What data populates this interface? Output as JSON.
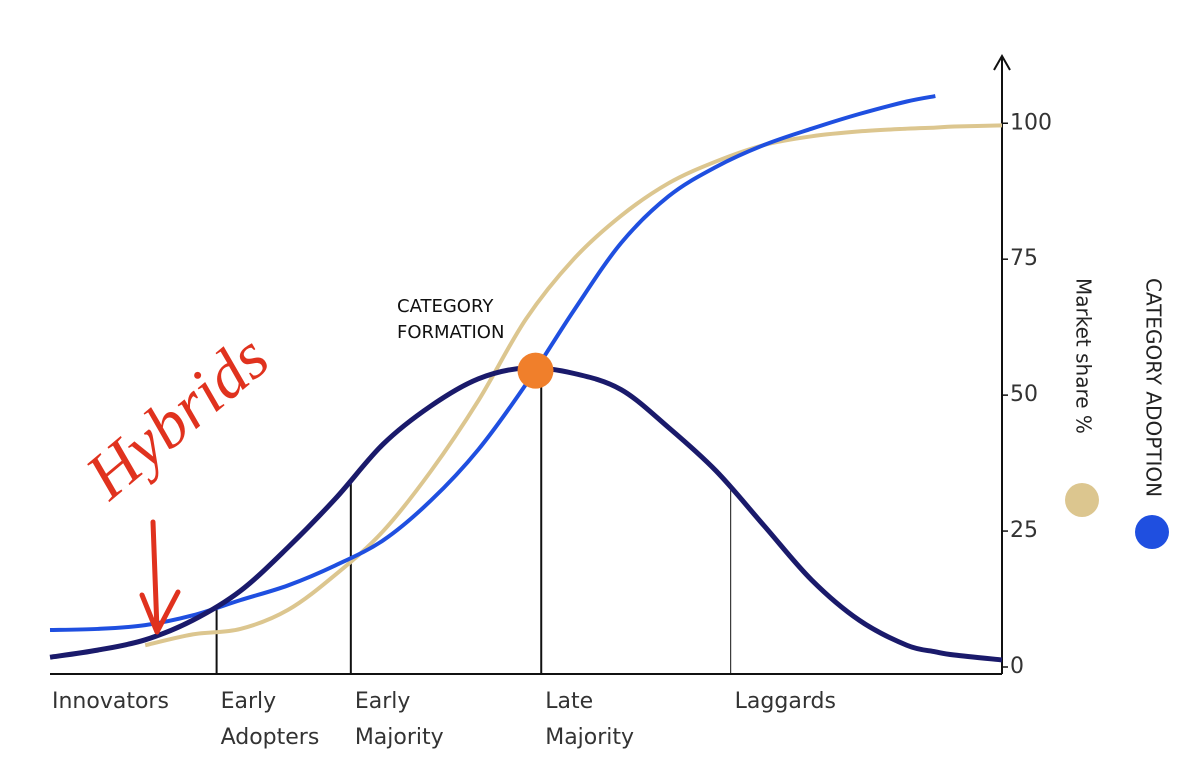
{
  "chart_data": {
    "type": "line",
    "x": [
      0,
      5,
      10,
      15,
      20,
      25,
      30,
      35,
      40,
      45,
      50,
      55,
      60,
      65,
      70,
      75,
      80,
      85,
      90,
      93,
      95,
      100
    ],
    "xlim": [
      0,
      100
    ],
    "ylim": [
      0,
      112
    ],
    "yticks": [
      0,
      25,
      50,
      75,
      100
    ],
    "series": [
      {
        "color": "#1a1a6b",
        "values": [
          1.8,
          3.1,
          5,
          8.6,
          14,
          22,
          31,
          41,
          48,
          53,
          55,
          54,
          51,
          44,
          36,
          26,
          16,
          8.6,
          4,
          2.8,
          2.2,
          1.3
        ]
      },
      {
        "name": "Market share %",
        "color": "#dcc68f",
        "values": [
          null,
          null,
          4,
          6,
          7,
          10.5,
          17,
          25,
          36,
          49,
          64,
          75,
          83,
          89,
          93,
          96,
          97.6,
          98.5,
          99,
          99.2,
          99.4,
          99.6
        ]
      },
      {
        "name": "CATEGORY ADOPTION",
        "color": "#1f4fe0",
        "values": [
          6.8,
          7,
          7.7,
          9.5,
          12.3,
          15,
          18.7,
          23.3,
          30.6,
          40,
          52,
          65.5,
          78,
          86.6,
          92,
          96,
          99,
          101.7,
          104,
          105,
          null,
          null
        ]
      }
    ],
    "segments": [
      {
        "lines": [
          "Innovators"
        ]
      },
      {
        "lines": [
          "Early",
          "Adopters"
        ]
      },
      {
        "lines": [
          "Early",
          "Majority"
        ]
      },
      {
        "lines": [
          "Late",
          "Majority"
        ]
      },
      {
        "lines": [
          "Laggards"
        ]
      }
    ],
    "dividers": [
      17.5,
      31.6,
      51.6,
      71.5
    ],
    "marker": {
      "lines": [
        "CATEGORY",
        "FORMATION"
      ],
      "x": 51,
      "y": 54.5,
      "color": "#f07f2b"
    },
    "hand_note": {
      "text": "Hybrids",
      "color": "#e0321e"
    }
  }
}
